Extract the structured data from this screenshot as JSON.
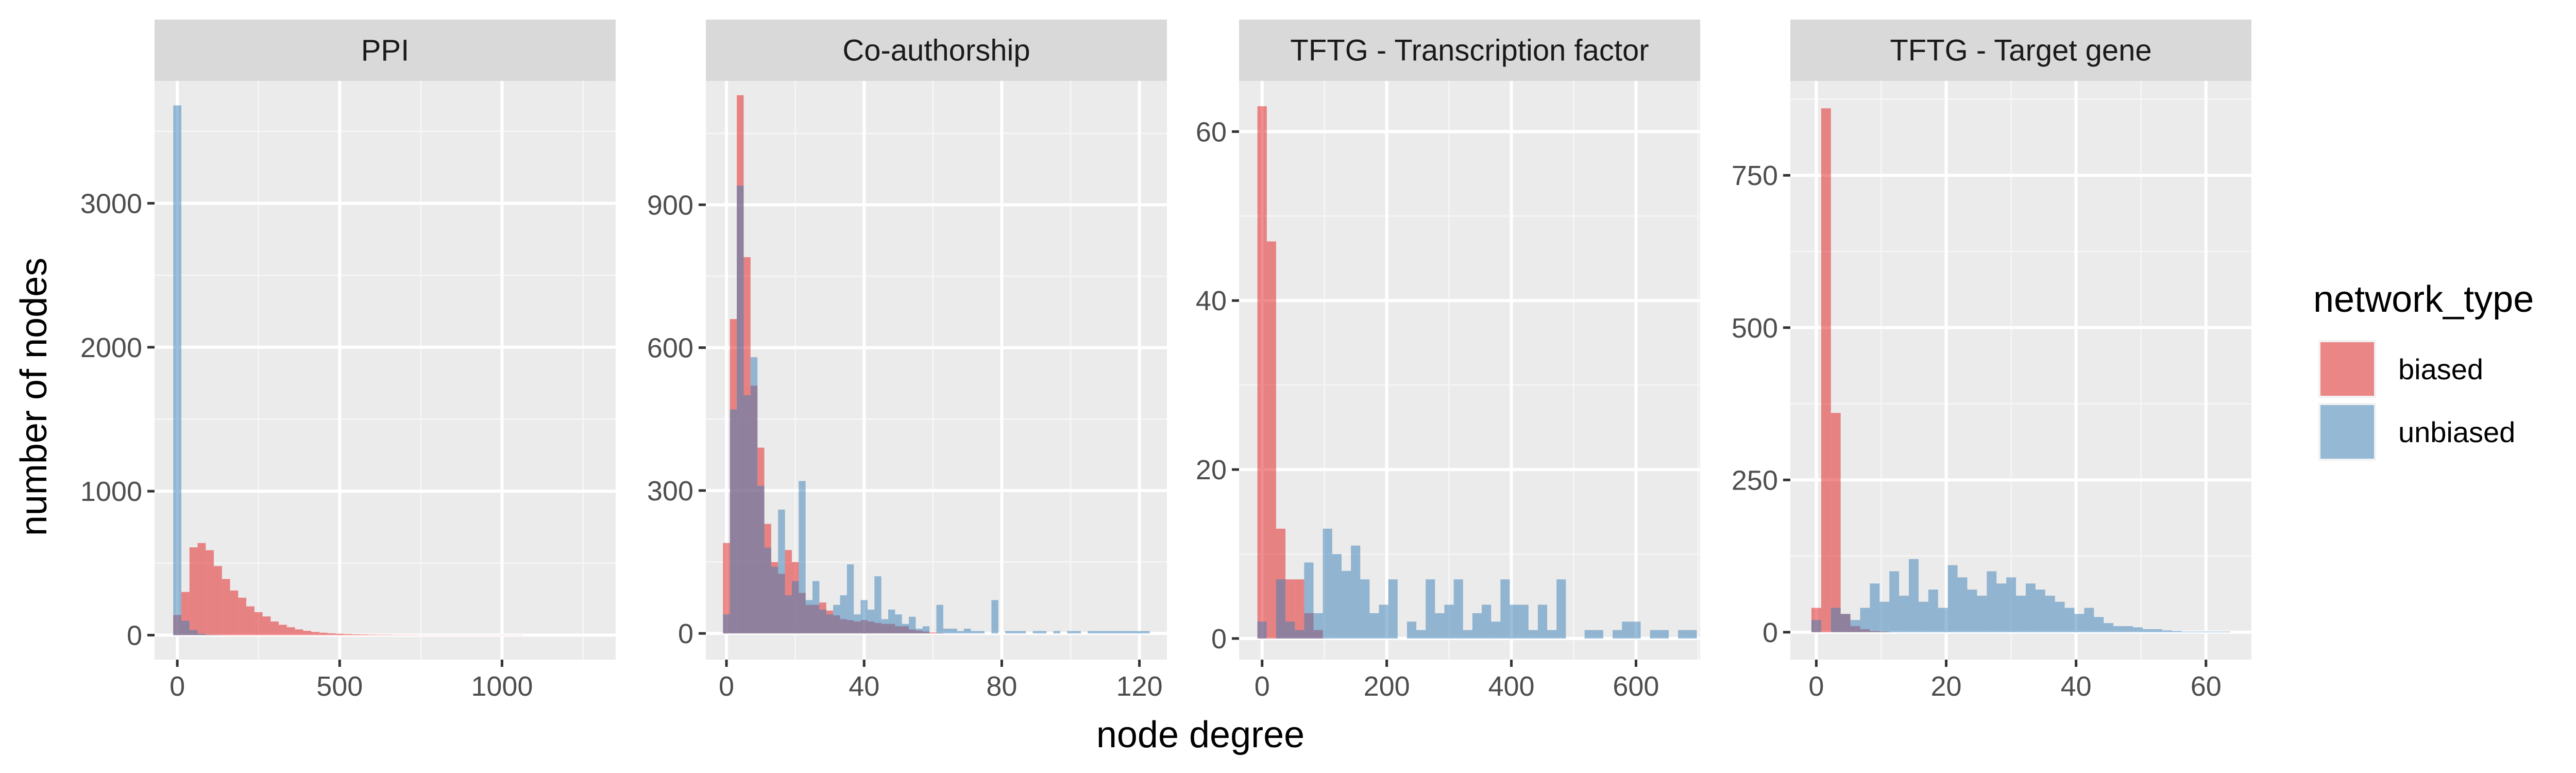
{
  "chart_data": {
    "type": "histogram",
    "xlabel": "node degree",
    "ylabel": "number of nodes",
    "legend": {
      "title": "network_type",
      "position": "right",
      "entries": [
        {
          "label": "biased",
          "color": "#E41A1C"
        },
        {
          "label": "unbiased",
          "color": "#377EB8"
        }
      ]
    },
    "fill_alpha": 0.5,
    "panels": [
      {
        "title": "PPI",
        "xlim": [
          -70,
          1350
        ],
        "ylim": [
          -170,
          3850
        ],
        "xticks": [
          0,
          500,
          1000
        ],
        "xtick_labels": [
          "0",
          "500",
          "1000"
        ],
        "yticks": [
          0,
          1000,
          2000,
          3000
        ],
        "ytick_labels": [
          "0",
          "1000",
          "2000",
          "3000"
        ],
        "bin_start": -12.5,
        "bin_width": 25,
        "series": [
          {
            "name": "biased",
            "values": [
              140,
              300,
              610,
              640,
              590,
              480,
              390,
              310,
              260,
              200,
              160,
              130,
              95,
              72,
              55,
              40,
              30,
              22,
              17,
              13,
              10,
              8,
              6,
              5,
              4,
              3,
              3,
              2,
              2,
              2,
              1,
              1,
              1,
              1,
              1,
              1,
              1,
              1,
              1,
              1,
              1,
              1,
              1
            ]
          },
          {
            "name": "unbiased",
            "values": [
              3680,
              100,
              35,
              10,
              3,
              1
            ]
          }
        ]
      },
      {
        "title": "Co-authorship",
        "xlim": [
          -6,
          128
        ],
        "ylim": [
          -55,
          1160
        ],
        "xticks": [
          0,
          40,
          80,
          120
        ],
        "xtick_labels": [
          "0",
          "40",
          "80",
          "120"
        ],
        "yticks": [
          0,
          300,
          600,
          900
        ],
        "ytick_labels": [
          "0",
          "300",
          "600",
          "900"
        ],
        "bin_start": -1,
        "bin_width": 2,
        "series": [
          {
            "name": "biased",
            "values": [
              190,
              660,
              1130,
              790,
              520,
              390,
              230,
              150,
              125,
              175,
              150,
              85,
              60,
              60,
              65,
              48,
              38,
              30,
              28,
              25,
              28,
              25,
              22,
              20,
              20,
              15,
              15,
              8,
              6,
              4,
              2,
              1
            ]
          },
          {
            "name": "unbiased",
            "values": [
              40,
              470,
              940,
              500,
              580,
              310,
              180,
              140,
              260,
              80,
              110,
              320,
              70,
              110,
              50,
              40,
              60,
              80,
              145,
              40,
              70,
              50,
              120,
              30,
              50,
              40,
              20,
              35,
              10,
              15,
              0,
              60,
              10,
              10,
              5,
              10,
              5,
              5,
              0,
              70,
              0,
              5,
              5,
              5,
              0,
              5,
              5,
              0,
              5,
              0,
              5,
              5,
              0,
              5,
              5,
              5,
              5,
              5,
              5,
              5,
              5,
              5
            ]
          }
        ]
      },
      {
        "title": "TFTG - Transcription factor",
        "xlim": [
          -37,
          703
        ],
        "ylim": [
          -2.5,
          66
        ],
        "xticks": [
          0,
          200,
          400,
          600
        ],
        "xtick_labels": [
          "0",
          "200",
          "400",
          "600"
        ],
        "yticks": [
          0,
          20,
          40,
          60
        ],
        "ytick_labels": [
          "0",
          "20",
          "40",
          "60"
        ],
        "bin_start": -7.5,
        "bin_width": 15,
        "series": [
          {
            "name": "biased",
            "values": [
              63,
              47,
              13,
              7,
              7,
              3,
              1,
              0,
              0,
              0,
              0,
              0,
              0,
              0,
              0,
              0,
              0,
              0,
              0,
              0,
              0,
              0,
              0,
              0,
              0,
              0,
              0,
              0,
              0,
              0,
              0,
              0,
              0,
              0,
              0,
              0,
              0,
              0,
              0,
              0,
              0,
              0,
              0,
              0,
              0,
              0,
              0
            ]
          },
          {
            "name": "unbiased",
            "values": [
              2,
              0,
              7,
              2,
              1,
              9,
              3,
              13,
              10,
              8,
              11,
              7,
              3,
              4,
              7,
              0,
              2,
              1,
              7,
              3,
              4,
              7,
              1,
              3,
              4,
              2,
              7,
              4,
              4,
              1,
              4,
              1,
              7,
              0,
              0,
              1,
              1,
              0,
              1,
              2,
              2,
              0,
              1,
              1,
              0,
              1,
              1
            ]
          }
        ]
      },
      {
        "title": "TFTG - Target gene",
        "xlim": [
          -4,
          67
        ],
        "ylim": [
          -45,
          905
        ],
        "xticks": [
          0,
          20,
          40,
          60
        ],
        "xtick_labels": [
          "0",
          "20",
          "40",
          "60"
        ],
        "yticks": [
          0,
          250,
          500,
          750
        ],
        "ytick_labels": [
          "0",
          "250",
          "500",
          "750"
        ],
        "bin_start": -0.75,
        "bin_width": 1.5,
        "series": [
          {
            "name": "biased",
            "values": [
              40,
              860,
              360,
              30,
              10,
              5,
              2,
              1
            ]
          },
          {
            "name": "unbiased",
            "values": [
              20,
              0,
              40,
              30,
              20,
              40,
              80,
              50,
              100,
              60,
              120,
              50,
              70,
              40,
              110,
              90,
              70,
              60,
              100,
              80,
              90,
              60,
              80,
              70,
              60,
              50,
              40,
              30,
              40,
              25,
              15,
              10,
              10,
              8,
              5,
              5,
              3,
              2,
              1,
              1,
              1,
              1,
              1
            ]
          }
        ]
      }
    ]
  }
}
